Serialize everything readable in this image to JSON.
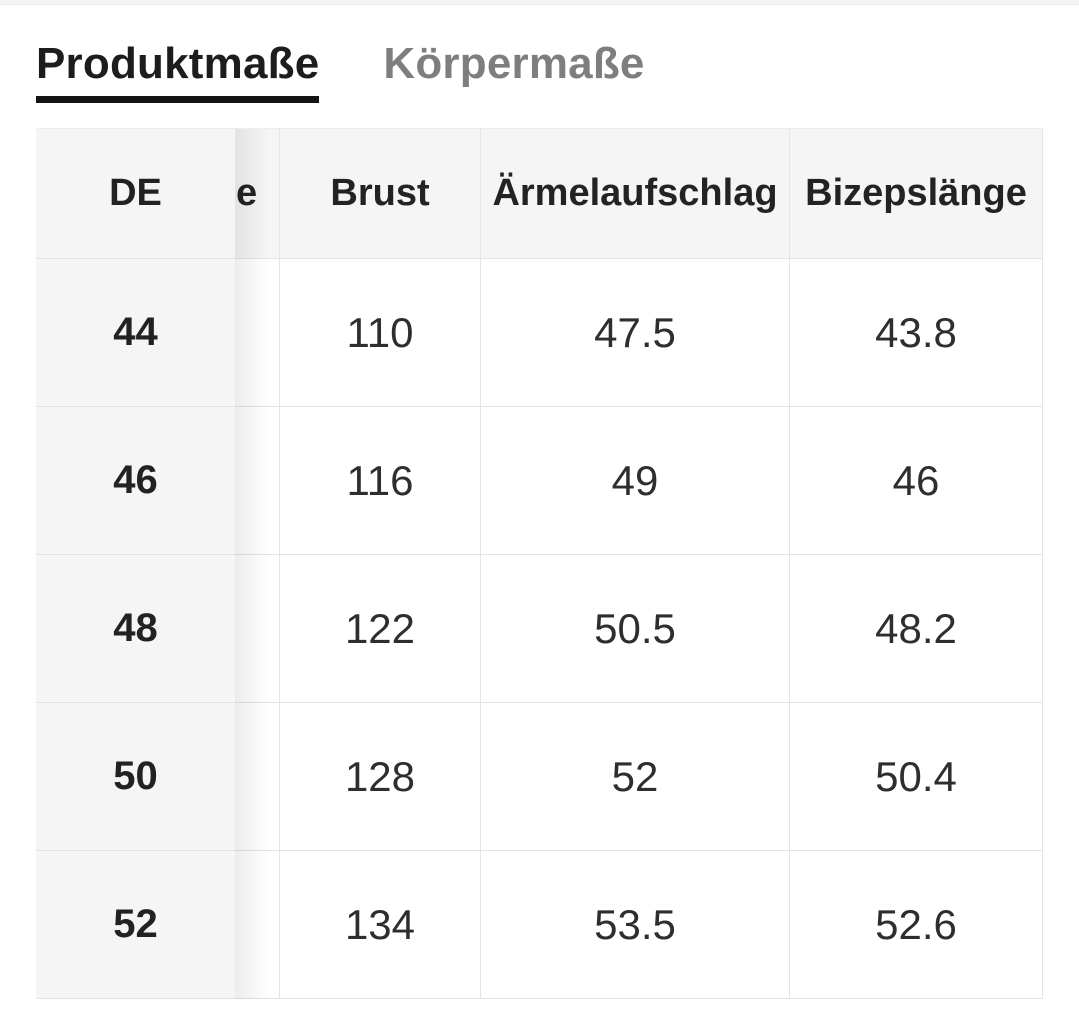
{
  "tabs": [
    {
      "id": "produktmasse",
      "label": "Produktmaße",
      "active": true
    },
    {
      "id": "koerpermasse",
      "label": "Körpermaße",
      "active": false
    }
  ],
  "table": {
    "columns": [
      {
        "key": "de",
        "label": "DE"
      },
      {
        "key": "partial",
        "label": "e"
      },
      {
        "key": "brust",
        "label": "Brust"
      },
      {
        "key": "aermelaufschlag",
        "label": "Ärmelaufschlag"
      },
      {
        "key": "bizepslaenge",
        "label": "Bizepslänge"
      }
    ],
    "rows": [
      {
        "de": "44",
        "partial": "",
        "brust": "110",
        "aermelaufschlag": "47.5",
        "bizepslaenge": "43.8"
      },
      {
        "de": "46",
        "partial": "",
        "brust": "116",
        "aermelaufschlag": "49",
        "bizepslaenge": "46"
      },
      {
        "de": "48",
        "partial": "",
        "brust": "122",
        "aermelaufschlag": "50.5",
        "bizepslaenge": "48.2"
      },
      {
        "de": "50",
        "partial": "",
        "brust": "128",
        "aermelaufschlag": "52",
        "bizepslaenge": "50.4"
      },
      {
        "de": "52",
        "partial": "",
        "brust": "134",
        "aermelaufschlag": "53.5",
        "bizepslaenge": "52.6"
      }
    ]
  },
  "colors": {
    "active_tab_text": "#1d1d1d",
    "active_tab_underline": "#141414",
    "inactive_tab_text": "#7e7e7e",
    "header_background": "#f5f5f5",
    "sticky_column_background": "#f5f5f5",
    "cell_text": "#2e2e2e",
    "border": "#e4e4e4"
  }
}
